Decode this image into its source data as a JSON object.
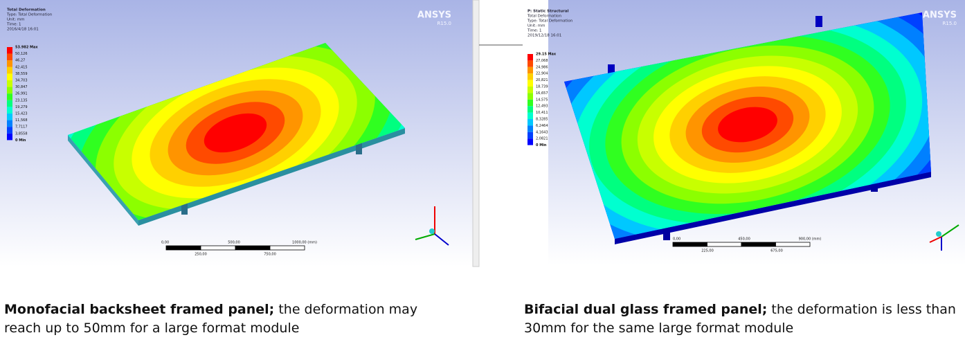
{
  "left": {
    "header": [
      "Total Deformation",
      "Type: Total Deformation",
      "Unit: mm",
      "Time: 1",
      "2016/4/18 16:01"
    ],
    "logo": "ANSYS",
    "version": "R15.0",
    "legend": [
      "53.982 Max",
      "50,126",
      "46,27",
      "42,415",
      "38,559",
      "34,703",
      "30,847",
      "26,991",
      "23,135",
      "19,279",
      "15,423",
      "11,568",
      "7,7117",
      "3,8558",
      "0 Min"
    ],
    "scale_top": [
      "0,00",
      "500,00",
      "1000,00 (mm)"
    ],
    "scale_bottom": [
      "250,00",
      "750,00"
    ],
    "caption_bold": "Monofacial backsheet framed panel;",
    "caption": " the deformation may reach up to 50mm for a large format module"
  },
  "right": {
    "header": [
      "P: Static Structural",
      "Total Deformation",
      "Type: Total Deformation",
      "Unit: mm",
      "Time: 1",
      "2019/12/18 16:01"
    ],
    "logo": "ANSYS",
    "version": "R15.0",
    "legend": [
      "29.15 Max",
      "27,068",
      "24,986",
      "22,904",
      "20,821",
      "18,739",
      "16,657",
      "14,575",
      "12,493",
      "10,411",
      "8,3285",
      "6,2464",
      "4,1643",
      "2,0821",
      "0 Min"
    ],
    "scale_top": [
      "0,00",
      "450,00",
      "900,00 (mm)"
    ],
    "scale_bottom": [
      "225,00",
      "675,00"
    ],
    "caption_bold": "Bifacial dual glass framed panel;",
    "caption": " the deformation is less than 30mm for the same large format module"
  }
}
